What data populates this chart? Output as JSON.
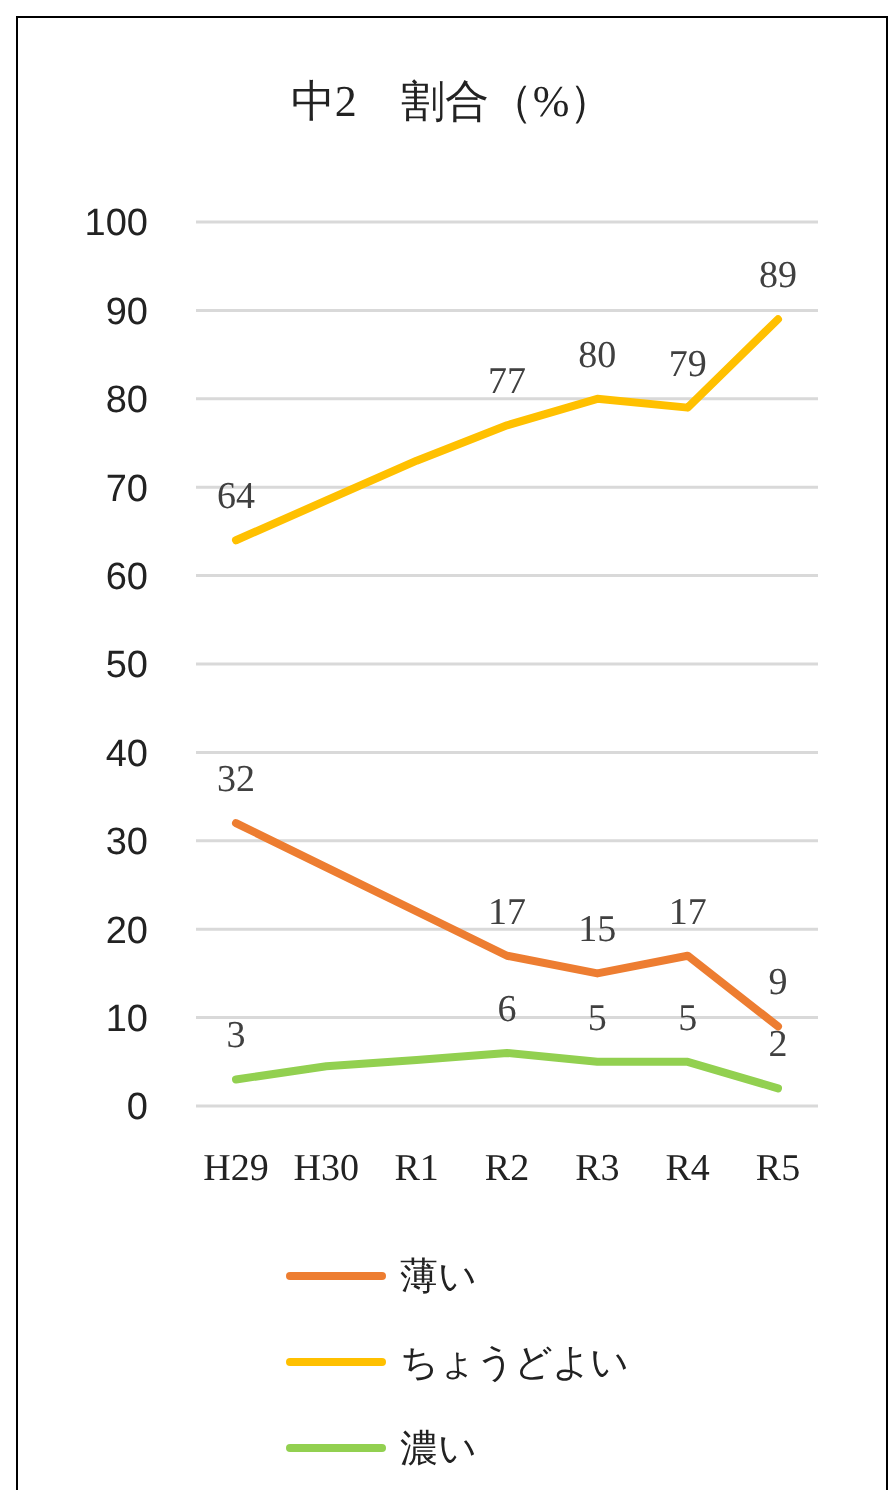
{
  "chart_data": {
    "type": "line",
    "title": "中2　割合（%）",
    "categories": [
      "H29",
      "H30",
      "R1",
      "R2",
      "R3",
      "R4",
      "R5"
    ],
    "ylim": [
      0,
      100
    ],
    "yticks": [
      0,
      10,
      20,
      30,
      40,
      50,
      60,
      70,
      80,
      90,
      100
    ],
    "grid": "y",
    "legend": "bottom",
    "marker": "none",
    "line_style": "solid",
    "series": [
      {
        "name": "薄い",
        "color": "#ed7d31",
        "values": [
          32,
          27,
          22,
          17,
          15,
          17,
          9
        ],
        "value_labels": [
          "32",
          null,
          null,
          "17",
          "15",
          "17",
          "9"
        ]
      },
      {
        "name": "ちょうどよい",
        "color": "#ffc000",
        "values": [
          64,
          68.5,
          73,
          77,
          80,
          79,
          89
        ],
        "value_labels": [
          "64",
          null,
          null,
          "77",
          "80",
          "79",
          "89"
        ]
      },
      {
        "name": "濃い",
        "color": "#92d050",
        "values": [
          3,
          4.5,
          5.2,
          6,
          5,
          5,
          2
        ],
        "value_labels": [
          "3",
          null,
          null,
          "6",
          "5",
          "5",
          "2"
        ]
      }
    ]
  }
}
